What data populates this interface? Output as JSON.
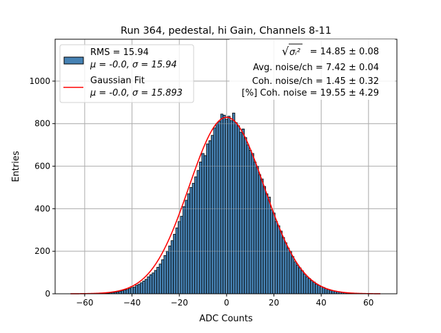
{
  "chart_data": {
    "type": "bar",
    "title": "Run 364, pedestal, hi Gain, Channels 8-11",
    "xlabel": "ADC Counts",
    "ylabel": "Entries",
    "xlim": [
      -72.5,
      72
    ],
    "ylim": [
      0,
      1197
    ],
    "xticks": [
      -60,
      -40,
      -20,
      0,
      20,
      40,
      60
    ],
    "yticks": [
      0,
      200,
      400,
      600,
      800,
      1000
    ],
    "grid": true,
    "bin_width": 1,
    "bin_centers_start": -55,
    "histogram": {
      "color": "#4682b4",
      "edgecolor": "#000000",
      "values": [
        1,
        1,
        1,
        2,
        3,
        3,
        4,
        6,
        7,
        9,
        12,
        14,
        18,
        20,
        25,
        30,
        32,
        40,
        45,
        52,
        60,
        68,
        80,
        90,
        98,
        110,
        125,
        140,
        160,
        180,
        200,
        225,
        250,
        280,
        310,
        340,
        365,
        410,
        440,
        470,
        500,
        520,
        550,
        580,
        620,
        660,
        650,
        705,
        720,
        745,
        780,
        800,
        810,
        845,
        840,
        820,
        835,
        815,
        850,
        805,
        790,
        760,
        775,
        735,
        700,
        675,
        660,
        620,
        600,
        560,
        540,
        505,
        470,
        455,
        395,
        380,
        340,
        320,
        295,
        265,
        240,
        215,
        200,
        175,
        150,
        135,
        122,
        108,
        92,
        80,
        72,
        62,
        55,
        45,
        40,
        34,
        30,
        24,
        20,
        16,
        14,
        12,
        10,
        8,
        6,
        5,
        4,
        3,
        2,
        2,
        1
      ]
    },
    "fit": {
      "color": "#ff0000",
      "mu": 0.0,
      "sigma": 15.893,
      "amplitude": 830,
      "range": [
        -66,
        65
      ]
    },
    "legend": {
      "placement": "upper-left",
      "entries": [
        {
          "line1": "RMS = 15.94",
          "line2": "μ = -0.0, σ = 15.94"
        },
        {
          "line1": "Gaussian Fit",
          "line2": "μ = -0.0, σ = 15.893"
        }
      ]
    },
    "annotations": [
      " = 14.85 ± 0.08",
      "Avg. noise/ch = 7.42 ± 0.04",
      "Coh. noise/ch = 1.45 ± 0.32",
      "[%] Coh. noise = 19.55 ± 4.29"
    ],
    "annotation_symbol": "σᵢ²"
  }
}
